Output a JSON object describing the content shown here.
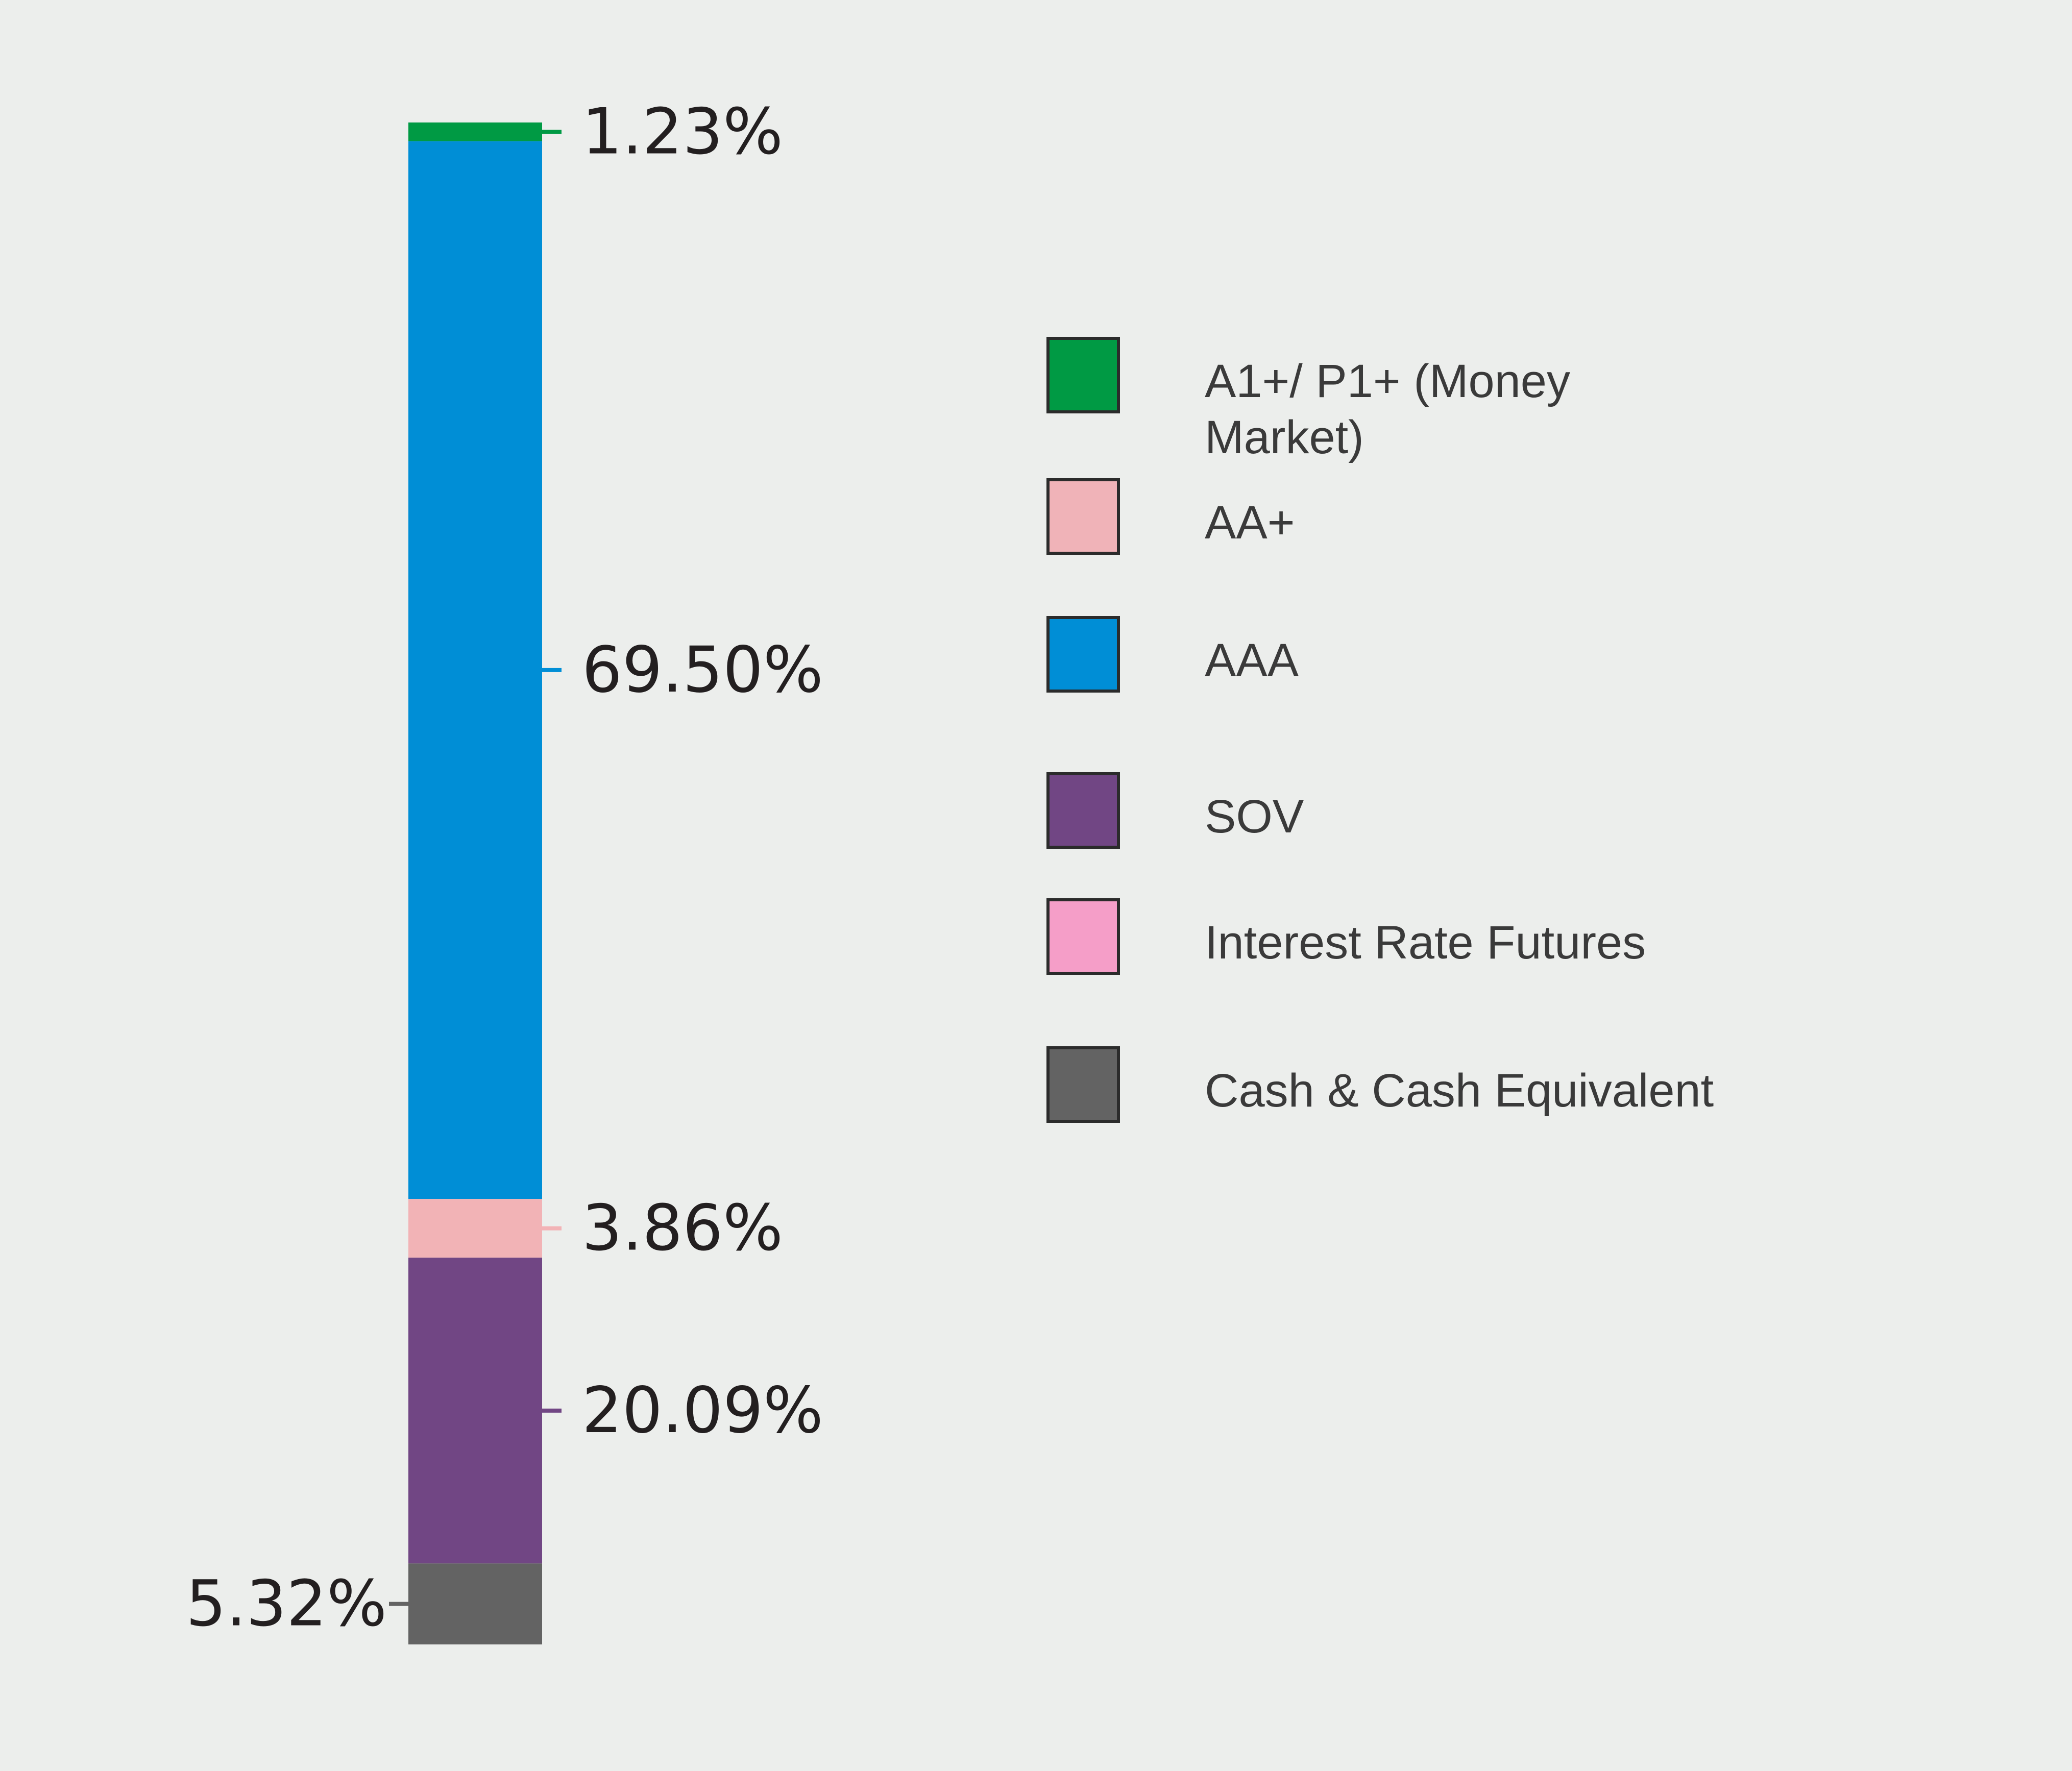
{
  "chart_data": {
    "type": "bar",
    "subtype": "stacked-100",
    "title": "",
    "xlabel": "",
    "ylabel": "",
    "ylim": [
      0,
      100
    ],
    "grid": false,
    "legend_position": "right",
    "segments_top_to_bottom": [
      {
        "name": "A1+/ P1+ (Money Market)",
        "value": 1.23,
        "label": "1.23%",
        "color": "#009a44",
        "label_side": "right"
      },
      {
        "name": "AAA",
        "value": 69.5,
        "label": "69.50%",
        "color": "#008ed6",
        "label_side": "right"
      },
      {
        "name": "AA+",
        "value": 3.86,
        "label": "3.86%",
        "color": "#f2b3b6",
        "label_side": "right"
      },
      {
        "name": "SOV",
        "value": 20.09,
        "label": "20.09%",
        "color": "#714684",
        "label_side": "right"
      },
      {
        "name": "Cash & Cash Equivalent",
        "value": 5.32,
        "label": "5.32%",
        "color": "#636363",
        "label_side": "left"
      }
    ],
    "legend": [
      {
        "name": "A1+/ P1+ (Money Market)",
        "color": "#009a44"
      },
      {
        "name": "AA+",
        "color": "#f0b3b8"
      },
      {
        "name": "AAA",
        "color": "#008ed6"
      },
      {
        "name": "SOV",
        "color": "#714684"
      },
      {
        "name": "Interest Rate Futures",
        "color": "#f59ec8"
      },
      {
        "name": "Cash & Cash Equivalent",
        "color": "#636363"
      }
    ]
  }
}
